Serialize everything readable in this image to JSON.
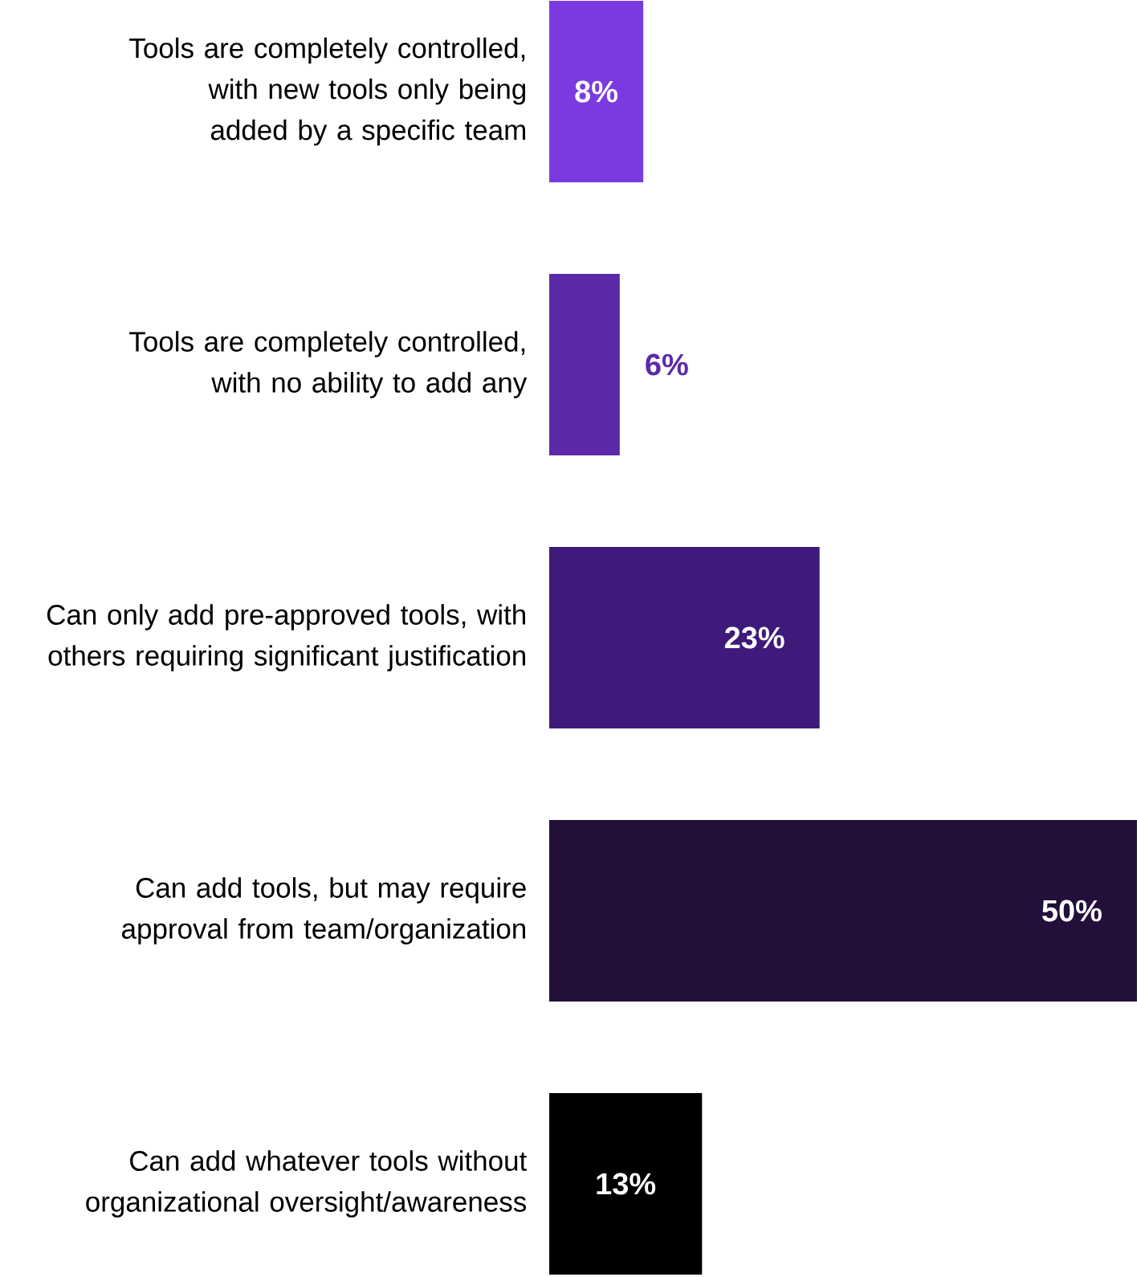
{
  "chart_data": {
    "type": "bar",
    "orientation": "horizontal",
    "categories": [
      "Tools are completely controlled, with new tools only being added by a specific team",
      "Tools are completely controlled, with no ability to add any",
      "Can only add pre-approved tools, with others requiring significant justification",
      "Can add tools, but may require approval from team/organization",
      "Can add whatever tools without organizational oversight/awareness"
    ],
    "values": [
      8,
      6,
      23,
      50,
      13
    ],
    "colors": [
      "#7b3ae0",
      "#5c2aa8",
      "#3e1b7a",
      "#22103b",
      "#000000"
    ],
    "value_labels": [
      "8%",
      "6%",
      "23%",
      "50%",
      "13%"
    ]
  }
}
